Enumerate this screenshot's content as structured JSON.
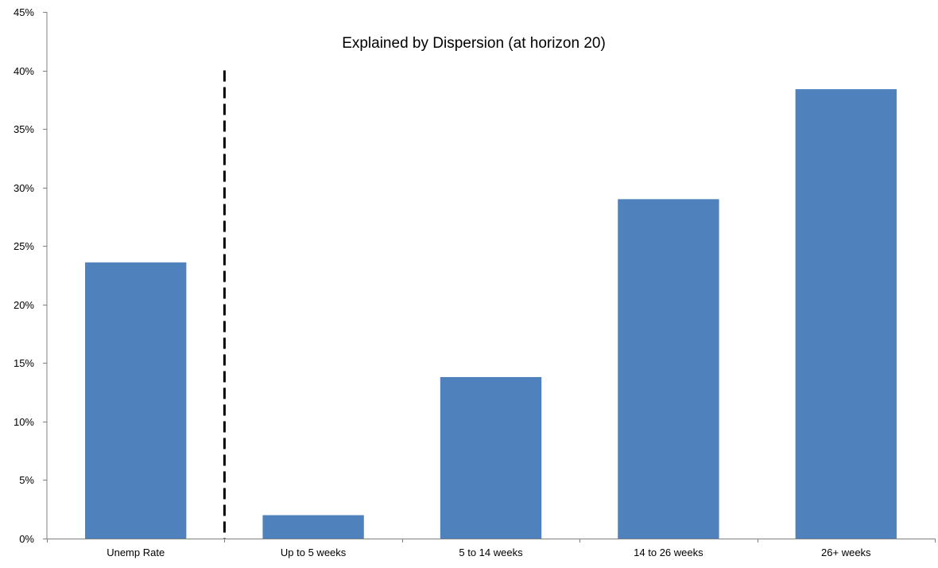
{
  "chart_data": {
    "type": "bar",
    "title": "Explained by Dispersion (at horizon 20)",
    "xlabel": "",
    "ylabel": "",
    "categories": [
      "Unemp Rate",
      "Up to 5 weeks",
      "5 to 14 weeks",
      "14 to 26 weeks",
      "26+ weeks"
    ],
    "values": [
      0.236,
      0.02,
      0.138,
      0.29,
      0.384
    ],
    "ylim": [
      0,
      0.45
    ],
    "yticks": [
      0,
      0.05,
      0.1,
      0.15,
      0.2,
      0.25,
      0.3,
      0.35,
      0.4,
      0.45
    ],
    "ytick_labels": [
      "0%",
      "5%",
      "10%",
      "15%",
      "20%",
      "25%",
      "30%",
      "35%",
      "40%",
      "45%"
    ],
    "grid": false,
    "legend": "none",
    "bar_color": "#4f81bd",
    "annotations": [
      {
        "type": "vertical-dashed-line",
        "between_categories": [
          "Unemp Rate",
          "Up to 5 weeks"
        ],
        "y_top": 0.4
      }
    ]
  }
}
